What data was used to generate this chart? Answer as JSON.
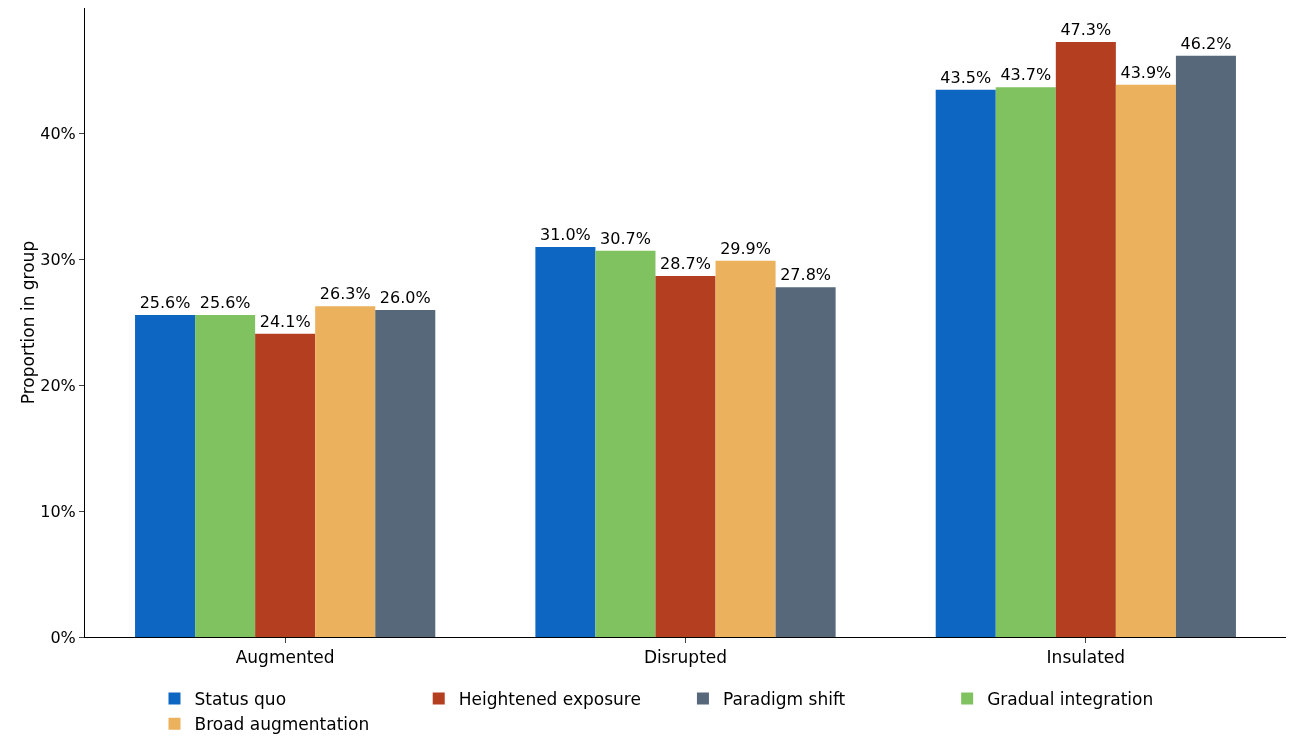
{
  "chart_data": {
    "type": "bar",
    "ylabel": "Proportion in group",
    "categories": [
      "Augmented",
      "Disrupted",
      "Insulated"
    ],
    "series": [
      {
        "name": "Status quo",
        "color": "#0c66c2",
        "values": [
          25.6,
          31.0,
          43.5
        ],
        "value_labels": [
          "25.6%",
          "31.0%",
          "43.5%"
        ]
      },
      {
        "name": "Gradual integration",
        "color": "#80c160",
        "values": [
          25.6,
          30.7,
          43.7
        ],
        "value_labels": [
          "25.6%",
          "30.7%",
          "43.7%"
        ]
      },
      {
        "name": "Heightened exposure",
        "color": "#b33f20",
        "values": [
          24.1,
          28.7,
          47.3
        ],
        "value_labels": [
          "24.1%",
          "28.7%",
          "47.3%"
        ]
      },
      {
        "name": "Broad augmentation",
        "color": "#ebb15d",
        "values": [
          26.3,
          29.9,
          43.9
        ],
        "value_labels": [
          "26.3%",
          "29.9%",
          "43.9%"
        ]
      },
      {
        "name": "Paradigm shift",
        "color": "#56687a",
        "values": [
          26.0,
          27.8,
          46.2
        ],
        "value_labels": [
          "26.0%",
          "27.8%",
          "46.2%"
        ]
      }
    ],
    "ylim": [
      0,
      50
    ],
    "yticks": [
      {
        "value": 0,
        "label": "0%"
      },
      {
        "value": 10,
        "label": "10%"
      },
      {
        "value": 20,
        "label": "20%"
      },
      {
        "value": 30,
        "label": "30%"
      },
      {
        "value": 40,
        "label": "40%"
      }
    ],
    "grid": false,
    "legend": "bottom"
  }
}
